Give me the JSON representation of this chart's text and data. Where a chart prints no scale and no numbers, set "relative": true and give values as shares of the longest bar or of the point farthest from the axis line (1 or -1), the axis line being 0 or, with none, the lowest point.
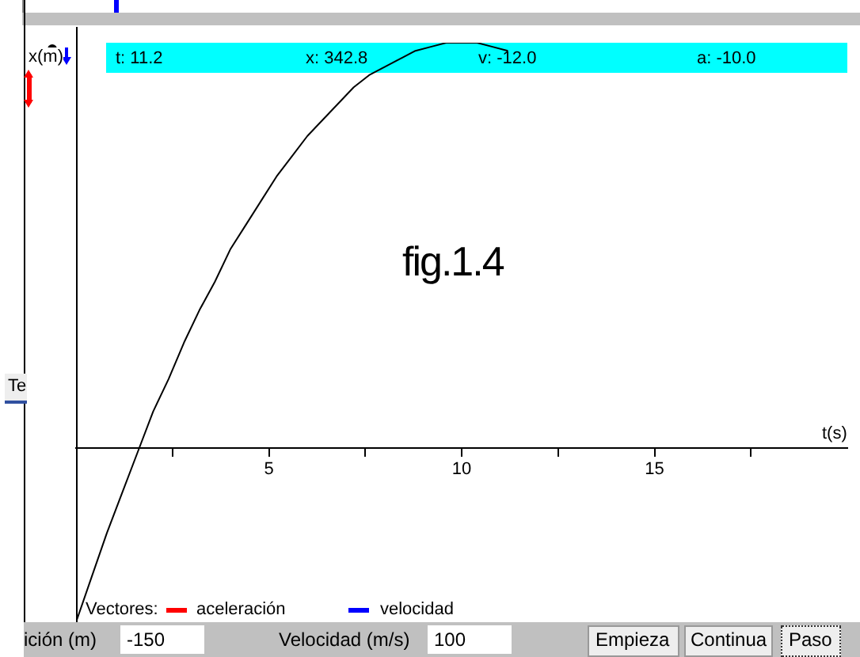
{
  "chart_data": {
    "type": "line",
    "relative": true,
    "xlabel": "t(s)",
    "ylabel": "x(m)",
    "x": [
      0,
      0.4,
      0.8,
      1.2,
      1.6,
      2.0,
      2.4,
      2.8,
      3.2,
      3.6,
      4.0,
      4.4,
      4.8,
      5.2,
      5.6,
      6.0,
      6.4,
      6.8,
      7.2,
      7.6,
      8.0,
      8.4,
      8.8,
      9.2,
      9.6,
      10.0,
      10.4,
      10.8,
      11.2
    ],
    "series": [
      {
        "color": "#000000",
        "values": [
          -0.43,
          -0.32,
          -0.21,
          -0.11,
          -0.01,
          0.09,
          0.17,
          0.26,
          0.34,
          0.41,
          0.49,
          0.55,
          0.61,
          0.67,
          0.72,
          0.77,
          0.81,
          0.85,
          0.89,
          0.92,
          0.94,
          0.96,
          0.98,
          0.99,
          1,
          1,
          1,
          0.99,
          0.98
        ]
      }
    ],
    "xlim": [
      0,
      20
    ],
    "xticks": [
      {
        "value": 2.5,
        "label": null
      },
      5,
      {
        "value": 7.5,
        "label": null
      },
      10,
      {
        "value": 12.5,
        "label": null
      },
      15,
      {
        "value": 17.5,
        "label": null
      }
    ],
    "grid": false,
    "legend": false,
    "marker": "none",
    "line_style": "solid",
    "annotations": [
      "t: 11.2",
      "x: 342.8",
      "v: -12.0",
      "a: -10.0",
      "fig.1.4",
      "Vectores:",
      "aceleración",
      "velocidad",
      "ición (m)",
      "-150",
      "Velocidad (m/s)",
      "100",
      "Empieza",
      "Continua",
      "Paso",
      "Te"
    ]
  }
}
